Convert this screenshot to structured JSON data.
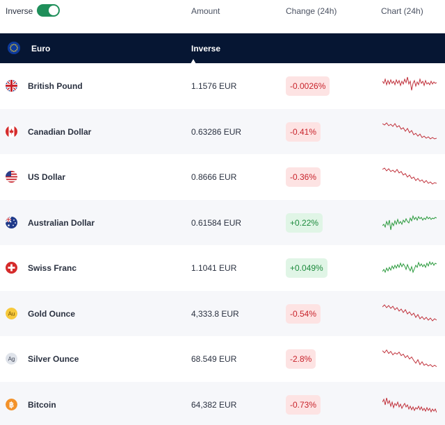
{
  "header": {
    "inverse_label": "Inverse",
    "inverse_enabled": true,
    "col_amount": "Amount",
    "col_change": "Change (24h)",
    "col_chart": "Chart (24h)"
  },
  "base": {
    "name": "Euro",
    "mode": "Inverse",
    "icon": "eu-flag-icon"
  },
  "colors": {
    "base_bg": "#061633",
    "toggle_on": "#1f8f5a",
    "negative": "#c8232b",
    "positive": "#1c8a3c"
  },
  "rows": [
    {
      "name": "British Pound",
      "amount": "1.1576 EUR",
      "change": "-0.0026%",
      "trend": "negative",
      "icon": "uk-flag-icon",
      "alt": false
    },
    {
      "name": "Canadian Dollar",
      "amount": "0.63286 EUR",
      "change": "-0.41%",
      "trend": "negative",
      "icon": "canada-flag-icon",
      "alt": true
    },
    {
      "name": "US Dollar",
      "amount": "0.8666 EUR",
      "change": "-0.36%",
      "trend": "negative",
      "icon": "us-flag-icon",
      "alt": false
    },
    {
      "name": "Australian Dollar",
      "amount": "0.61584 EUR",
      "change": "+0.22%",
      "trend": "positive",
      "icon": "australia-flag-icon",
      "alt": true
    },
    {
      "name": "Swiss Franc",
      "amount": "1.1041 EUR",
      "change": "+0.049%",
      "trend": "positive",
      "icon": "switzerland-flag-icon",
      "alt": false
    },
    {
      "name": "Gold Ounce",
      "amount": "4,333.8 EUR",
      "change": "-0.54%",
      "trend": "negative",
      "icon": "gold-coin-icon",
      "alt": true
    },
    {
      "name": "Silver Ounce",
      "amount": "68.549 EUR",
      "change": "-2.8%",
      "trend": "negative",
      "icon": "silver-coin-icon",
      "alt": false
    },
    {
      "name": "Bitcoin",
      "amount": "64,382 EUR",
      "change": "-0.73%",
      "trend": "negative",
      "icon": "bitcoin-icon",
      "alt": true
    }
  ]
}
